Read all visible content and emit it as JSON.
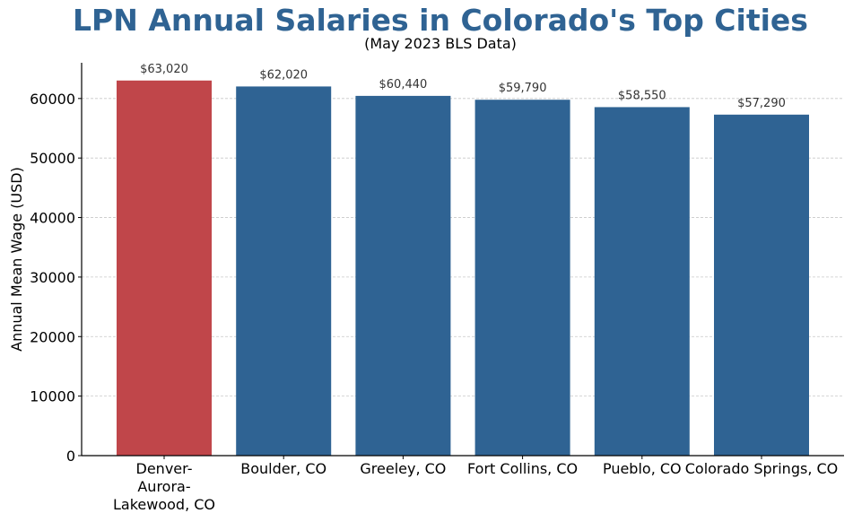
{
  "chart_data": {
    "type": "bar",
    "title": "LPN Annual Salaries in Colorado's Top Cities",
    "subtitle": "(May 2023 BLS Data)",
    "xlabel": "",
    "ylabel": "Annual Mean Wage (USD)",
    "categories": [
      "Denver-Aurora-Lakewood, CO",
      "Boulder, CO",
      "Greeley, CO",
      "Fort Collins, CO",
      "Pueblo, CO",
      "Colorado Springs, CO"
    ],
    "category_labels": [
      [
        "Denver-",
        "Aurora-",
        "Lakewood, CO"
      ],
      [
        "Boulder, CO"
      ],
      [
        "Greeley, CO"
      ],
      [
        "Fort Collins, CO"
      ],
      [
        "Pueblo, CO"
      ],
      [
        "Colorado Springs, CO"
      ]
    ],
    "values": [
      63020,
      62020,
      60440,
      59790,
      58550,
      57290
    ],
    "data_labels": [
      "$63,020",
      "$62,020",
      "$60,440",
      "$59,790",
      "$58,550",
      "$57,290"
    ],
    "highlight_index": 0,
    "ylim": [
      0,
      66000
    ],
    "yticks": [
      0,
      10000,
      20000,
      30000,
      40000,
      50000,
      60000
    ],
    "ytick_labels": [
      "0",
      "10000",
      "20000",
      "30000",
      "40000",
      "50000",
      "60000"
    ],
    "grid": "horizontal dashed",
    "legend": "none",
    "colors": {
      "bar": "#2f6393",
      "highlight": "#c0464a",
      "title": "#2f6393",
      "grid": "#c8c8c8"
    }
  }
}
